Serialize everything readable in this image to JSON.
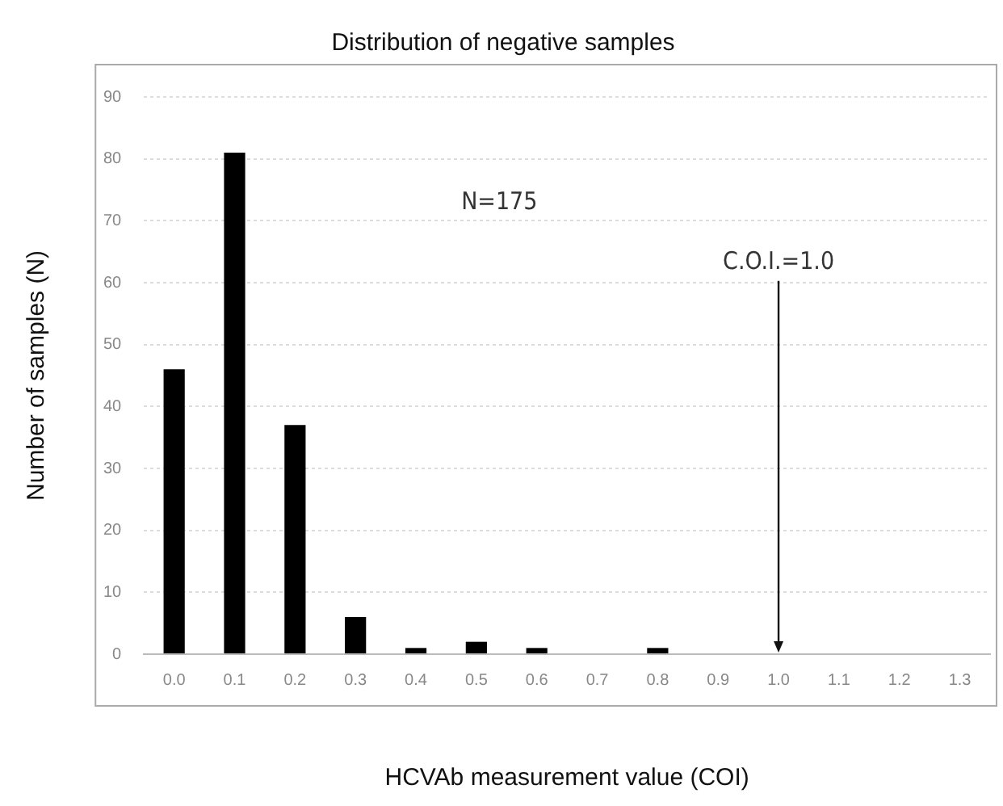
{
  "chart_data": {
    "type": "bar",
    "title": "Distribution of negative samples",
    "xlabel": "HCVAb measurement value (COI)",
    "ylabel": "Number of samples (N)",
    "categories": [
      "0.0",
      "0.1",
      "0.2",
      "0.3",
      "0.4",
      "0.5",
      "0.6",
      "0.7",
      "0.8",
      "0.9",
      "1.0",
      "1.1",
      "1.2",
      "1.3"
    ],
    "values": [
      46,
      81,
      37,
      6,
      1,
      2,
      1,
      0,
      1,
      0,
      0,
      0,
      0,
      0
    ],
    "color": "#000000",
    "ylim": [
      0,
      90
    ],
    "yticks": [
      0,
      10,
      20,
      30,
      40,
      50,
      60,
      70,
      80,
      90
    ],
    "grid": "y",
    "legend": false,
    "annotations": [
      "N=175",
      {
        "text": "C.O.I.=1.0",
        "x": "1.0",
        "y": 0
      }
    ]
  }
}
